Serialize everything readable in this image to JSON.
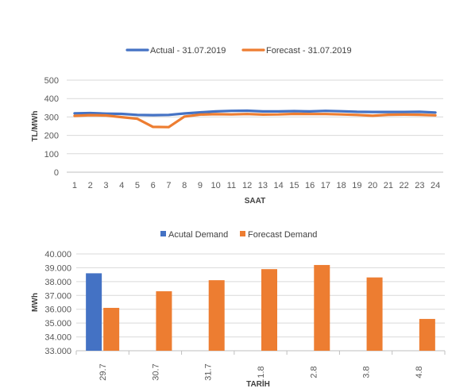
{
  "colors": {
    "actual": "#4472C4",
    "forecast": "#ED7D31",
    "grid": "#D9D9D9",
    "axis": "#BFBFBF",
    "text": "#595959"
  },
  "chart_data": [
    {
      "type": "line",
      "title": "",
      "xlabel": "SAAT",
      "ylabel": "TL/MWh",
      "ylim": [
        0,
        500
      ],
      "yticks": [
        "0",
        "100",
        "200",
        "300",
        "400",
        "500"
      ],
      "ytick_values": [
        0,
        100,
        200,
        300,
        400,
        500
      ],
      "grid": true,
      "legend": "top-center",
      "categories": [
        "1",
        "2",
        "3",
        "4",
        "5",
        "6",
        "7",
        "8",
        "9",
        "10",
        "11",
        "12",
        "13",
        "14",
        "15",
        "16",
        "17",
        "18",
        "19",
        "20",
        "21",
        "22",
        "23",
        "24"
      ],
      "series": [
        {
          "name": "Actual - 31.07.2019",
          "color": "#4472C4",
          "values": [
            320,
            321,
            318,
            317,
            311,
            310,
            311,
            319,
            325,
            330,
            333,
            334,
            330,
            330,
            332,
            330,
            333,
            331,
            328,
            327,
            327,
            327,
            328,
            324
          ]
        },
        {
          "name": "Forecast - 31.07.2019",
          "color": "#ED7D31",
          "values": [
            306,
            310,
            308,
            299,
            290,
            246,
            245,
            302,
            313,
            315,
            314,
            316,
            313,
            314,
            317,
            316,
            316,
            314,
            311,
            307,
            312,
            313,
            312,
            309
          ]
        }
      ]
    },
    {
      "type": "bar",
      "title": "",
      "xlabel": "TARİH",
      "ylabel": "MWh",
      "ylim": [
        33000,
        40000
      ],
      "yticks": [
        "33.000",
        "34.000",
        "35.000",
        "36.000",
        "37.000",
        "38.000",
        "39.000",
        "40.000"
      ],
      "ytick_values": [
        33000,
        34000,
        35000,
        36000,
        37000,
        38000,
        39000,
        40000
      ],
      "grid": true,
      "legend": "top-center",
      "categories": [
        "29.7",
        "30.7",
        "31.7",
        "1.8",
        "2.8",
        "3.8",
        "4.8"
      ],
      "series": [
        {
          "name": "Acutal Demand",
          "color": "#4472C4",
          "values": [
            38600,
            null,
            null,
            null,
            null,
            null,
            null
          ]
        },
        {
          "name": "Forecast Demand",
          "color": "#ED7D31",
          "values": [
            36100,
            37300,
            38100,
            38900,
            39200,
            38300,
            35300
          ]
        }
      ]
    }
  ]
}
